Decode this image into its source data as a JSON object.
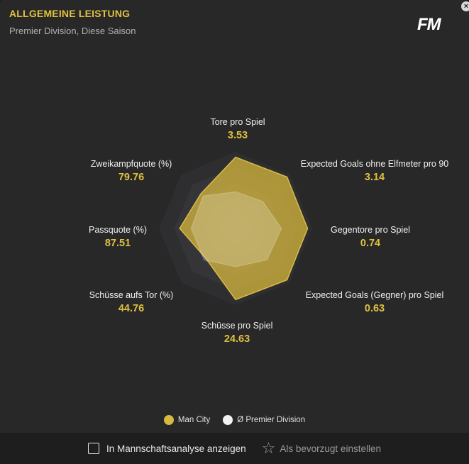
{
  "header": {
    "title": "ALLGEMEINE LEISTUNG",
    "subtitle": "Premier Division, Diese Saison",
    "logo_text": "FM",
    "close_label": "×"
  },
  "chart_data": {
    "type": "radar",
    "axes": [
      {
        "name": "Tore pro Spiel",
        "value": "3.53",
        "team_frac": 0.93,
        "avg_frac": 0.48
      },
      {
        "name": "Expected Goals ohne Elfmeter pro 90",
        "value": "3.14",
        "team_frac": 0.95,
        "avg_frac": 0.5
      },
      {
        "name": "Gegentore pro Spiel",
        "value": "0.74",
        "team_frac": 0.94,
        "avg_frac": 0.6
      },
      {
        "name": "Expected Goals (Gegner) pro Spiel",
        "value": "0.63",
        "team_frac": 0.95,
        "avg_frac": 0.58
      },
      {
        "name": "Schüsse pro Spiel",
        "value": "24.63",
        "team_frac": 0.93,
        "avg_frac": 0.5
      },
      {
        "name": "Schüsse aufs Tor (%)",
        "value": "44.76",
        "team_frac": 0.55,
        "avg_frac": 0.58
      },
      {
        "name": "Passquote (%)",
        "value": "87.51",
        "team_frac": 0.73,
        "avg_frac": 0.58
      },
      {
        "name": "Zweikampfquote (%)",
        "value": "79.76",
        "team_frac": 0.64,
        "avg_frac": 0.6
      }
    ],
    "series": [
      {
        "name": "Man City",
        "color": "#c8ac3c"
      },
      {
        "name": "Ø Premier Division",
        "color": "#f2f2f2"
      }
    ]
  },
  "legend": {
    "team": "Man City",
    "average": "Ø Premier Division"
  },
  "footer": {
    "checkbox_label": "In Mannschaftsanalyse anzeigen",
    "checkbox_checked": false,
    "favorite_label": "Als bevorzugt einstellen"
  },
  "colors": {
    "accent": "#e0c040",
    "team_fill": "#c8ac3c",
    "average_dot": "#f2f2f2",
    "background": "#282828"
  }
}
